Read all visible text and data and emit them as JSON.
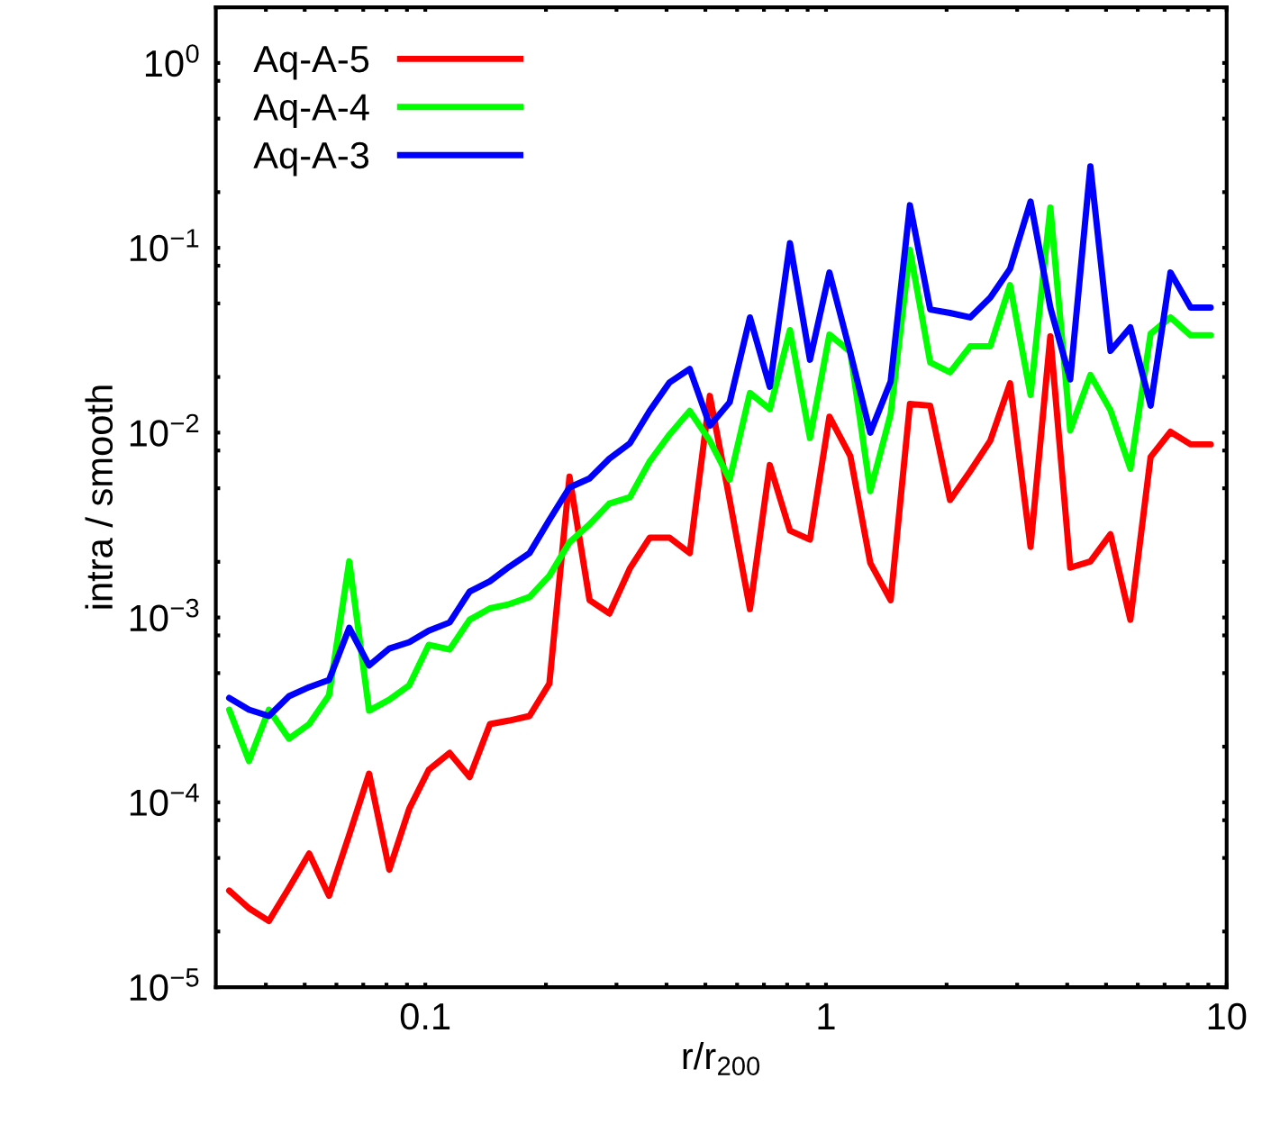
{
  "chart_data": {
    "type": "line",
    "xlabel": "r/r$_{200}$",
    "ylabel": "intra / smooth",
    "log": "xy",
    "grid": false,
    "legend": "top left",
    "line_style": "solid",
    "marker": "none",
    "x": [
      0.0324,
      0.0363,
      0.0407,
      0.0457,
      0.0513,
      0.0575,
      0.0646,
      0.0724,
      0.0813,
      0.0912,
      0.102,
      0.115,
      0.129,
      0.145,
      0.162,
      0.182,
      0.204,
      0.229,
      0.257,
      0.288,
      0.324,
      0.363,
      0.407,
      0.457,
      0.513,
      0.575,
      0.646,
      0.724,
      0.813,
      0.912,
      1.02,
      1.15,
      1.29,
      1.45,
      1.62,
      1.82,
      2.04,
      2.29,
      2.57,
      2.88,
      3.24,
      3.63,
      4.07,
      4.57,
      5.13,
      5.75,
      6.46,
      7.24,
      8.13,
      9.12
    ],
    "series": [
      {
        "name": "Aq-A-5",
        "color": "#ff0000",
        "values": [
          3.33e-05,
          2.67e-05,
          2.28e-05,
          3.45e-05,
          5.28e-05,
          3.12e-05,
          6.68e-05,
          0.000143,
          4.32e-05,
          9.24e-05,
          0.00015,
          0.000185,
          0.000137,
          0.000265,
          0.000277,
          0.000293,
          0.000439,
          0.00578,
          0.00124,
          0.00105,
          0.00184,
          0.0027,
          0.0027,
          0.00223,
          0.0158,
          0.00432,
          0.00111,
          0.00668,
          0.00295,
          0.00264,
          0.0122,
          0.00747,
          0.00197,
          0.00124,
          0.0143,
          0.014,
          0.00432,
          0.00618,
          0.00904,
          0.0185,
          0.00241,
          0.0332,
          0.00186,
          0.00201,
          0.00282,
          0.000972,
          0.00739,
          0.0101,
          0.00864,
          0.00864
        ]
      },
      {
        "name": "Aq-A-4",
        "color": "#00ff00",
        "values": [
          0.000317,
          0.000167,
          0.000317,
          0.000221,
          0.000265,
          0.000379,
          0.00201,
          0.000313,
          0.000359,
          0.00043,
          0.000711,
          0.000671,
          0.000972,
          0.00112,
          0.00118,
          0.00129,
          0.00168,
          0.00255,
          0.00319,
          0.00413,
          0.00447,
          0.00698,
          0.00977,
          0.0131,
          0.00904,
          0.00558,
          0.0164,
          0.0134,
          0.0359,
          0.00935,
          0.0339,
          0.0274,
          0.00483,
          0.0126,
          0.0973,
          0.024,
          0.0212,
          0.0293,
          0.0293,
          0.0628,
          0.016,
          0.165,
          0.0103,
          0.0205,
          0.0132,
          0.00638,
          0.0343,
          0.042,
          0.0336,
          0.0336
        ]
      },
      {
        "name": "Aq-A-3",
        "color": "#0000ff",
        "values": [
          0.000367,
          0.000317,
          0.000293,
          0.000375,
          0.00042,
          0.000459,
          0.000879,
          0.00055,
          0.000679,
          0.000735,
          0.000849,
          0.00094,
          0.00138,
          0.00157,
          0.00188,
          0.00223,
          0.00337,
          0.00505,
          0.00565,
          0.00723,
          0.00875,
          0.0131,
          0.0187,
          0.0221,
          0.0109,
          0.0146,
          0.042,
          0.0177,
          0.106,
          0.0248,
          0.0735,
          0.0271,
          0.01,
          0.0189,
          0.17,
          0.0464,
          0.0444,
          0.042,
          0.0537,
          0.0769,
          0.178,
          0.0475,
          0.0194,
          0.276,
          0.0277,
          0.0371,
          0.014,
          0.0735,
          0.0475,
          0.0475
        ]
      }
    ],
    "xlim": [
      0.03,
      10
    ],
    "ylim": [
      1e-05,
      2
    ],
    "xticks": [
      {
        "value": 0.04,
        "label": null
      },
      {
        "value": 0.05,
        "label": null
      },
      {
        "value": 0.06,
        "label": null
      },
      {
        "value": 0.07,
        "label": null
      },
      {
        "value": 0.08,
        "label": null
      },
      {
        "value": 0.09,
        "label": null
      },
      0.1,
      {
        "value": 0.2,
        "label": null
      },
      {
        "value": 0.3,
        "label": null
      },
      {
        "value": 0.4,
        "label": null
      },
      {
        "value": 0.5,
        "label": null
      },
      {
        "value": 0.6,
        "label": null
      },
      {
        "value": 0.7,
        "label": null
      },
      {
        "value": 0.8,
        "label": null
      },
      {
        "value": 0.9,
        "label": null
      },
      1,
      {
        "value": 2,
        "label": null
      },
      {
        "value": 3,
        "label": null
      },
      {
        "value": 4,
        "label": null
      },
      {
        "value": 5,
        "label": null
      },
      {
        "value": 6,
        "label": null
      },
      {
        "value": 7,
        "label": null
      },
      {
        "value": 8,
        "label": null
      },
      {
        "value": 9,
        "label": null
      },
      10
    ],
    "yticks": [
      {
        "value": 1e-05,
        "label": "10$^{−5}$"
      },
      {
        "value": 2e-05,
        "label": null
      },
      {
        "value": 5e-05,
        "label": null
      },
      {
        "value": 8e-05,
        "label": null
      },
      {
        "value": 0.0001,
        "label": "10$^{−4}$"
      },
      {
        "value": 0.0002,
        "label": null
      },
      {
        "value": 0.0005,
        "label": null
      },
      {
        "value": 0.0008,
        "label": null
      },
      {
        "value": 0.001,
        "label": "10$^{−3}$"
      },
      {
        "value": 0.002,
        "label": null
      },
      {
        "value": 0.005,
        "label": null
      },
      {
        "value": 0.008,
        "label": null
      },
      {
        "value": 0.01,
        "label": "10$^{−2}$"
      },
      {
        "value": 0.02,
        "label": null
      },
      {
        "value": 0.05,
        "label": null
      },
      {
        "value": 0.08,
        "label": null
      },
      {
        "value": 0.1,
        "label": "10$^{−1}$"
      },
      {
        "value": 0.2,
        "label": null
      },
      {
        "value": 0.5,
        "label": null
      },
      {
        "value": 0.8,
        "label": null
      },
      {
        "value": 1,
        "label": "10$^{0}$"
      },
      {
        "value": 2,
        "label": null
      }
    ]
  }
}
